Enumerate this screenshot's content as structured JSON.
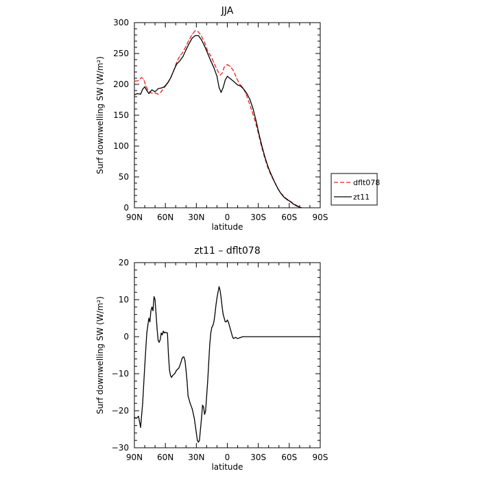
{
  "chart_data": [
    {
      "type": "line",
      "title": "JJA",
      "xlabel": "latitude",
      "ylabel": "Surf downwelling SW (W/m²)",
      "xlim": [
        90,
        -90
      ],
      "ylim": [
        0,
        300
      ],
      "xticks": [
        90,
        60,
        30,
        0,
        -30,
        -60,
        -90
      ],
      "xtick_labels": [
        "90N",
        "60N",
        "30N",
        "0",
        "30S",
        "60S",
        "90S"
      ],
      "yticks": [
        0,
        50,
        100,
        150,
        200,
        250,
        300
      ],
      "ytick_labels": [
        "0",
        "50",
        "100",
        "150",
        "200",
        "250",
        "300"
      ],
      "legend": {
        "placement": "right",
        "entries": [
          "dflt078",
          "zt11"
        ]
      },
      "series": [
        {
          "name": "dflt078",
          "color": "#e0201c",
          "dash": "dashed",
          "points": [
            [
              90,
              205
            ],
            [
              86,
              206
            ],
            [
              83,
              211
            ],
            [
              81,
              208
            ],
            [
              79,
              198
            ],
            [
              77,
              191
            ],
            [
              74,
              186
            ],
            [
              70,
              186
            ],
            [
              67,
              184
            ],
            [
              64,
              188
            ],
            [
              61,
              195
            ],
            [
              58,
              201
            ],
            [
              55,
              210
            ],
            [
              52,
              222
            ],
            [
              49,
              236
            ],
            [
              46,
              246
            ],
            [
              43,
              252
            ],
            [
              40,
              262
            ],
            [
              37,
              272
            ],
            [
              34,
              281
            ],
            [
              31,
              287
            ],
            [
              28,
              285
            ],
            [
              25,
              278
            ],
            [
              22,
              268
            ],
            [
              19,
              254
            ],
            [
              16,
              246
            ],
            [
              13,
              235
            ],
            [
              10,
              224
            ],
            [
              7,
              215
            ],
            [
              5,
              218
            ],
            [
              3,
              228
            ],
            [
              0,
              232
            ],
            [
              -3,
              229
            ],
            [
              -6,
              222
            ],
            [
              -9,
              210
            ],
            [
              -12,
              200
            ],
            [
              -15,
              195
            ],
            [
              -18,
              185
            ],
            [
              -21,
              171
            ],
            [
              -24,
              156
            ],
            [
              -27,
              140
            ],
            [
              -30,
              121
            ],
            [
              -33,
              100
            ],
            [
              -36,
              82
            ],
            [
              -39,
              66
            ],
            [
              -42,
              54
            ],
            [
              -45,
              44
            ],
            [
              -48,
              34
            ],
            [
              -51,
              25
            ],
            [
              -54,
              20
            ],
            [
              -57,
              15
            ],
            [
              -60,
              12
            ],
            [
              -63,
              8
            ],
            [
              -66,
              5
            ],
            [
              -69,
              2
            ],
            [
              -72,
              0
            ]
          ]
        },
        {
          "name": "zt11",
          "color": "#000000",
          "dash": "solid",
          "points": [
            [
              90,
              183
            ],
            [
              87,
              185
            ],
            [
              84,
              184
            ],
            [
              82,
              192
            ],
            [
              80,
              196
            ],
            [
              78,
              190
            ],
            [
              76,
              185
            ],
            [
              73,
              191
            ],
            [
              70,
              188
            ],
            [
              67,
              193
            ],
            [
              64,
              194
            ],
            [
              61,
              196
            ],
            [
              58,
              202
            ],
            [
              55,
              210
            ],
            [
              52,
              222
            ],
            [
              49,
              233
            ],
            [
              46,
              238
            ],
            [
              43,
              245
            ],
            [
              40,
              256
            ],
            [
              37,
              266
            ],
            [
              34,
              275
            ],
            [
              31,
              279
            ],
            [
              28,
              279
            ],
            [
              25,
              272
            ],
            [
              22,
              262
            ],
            [
              19,
              250
            ],
            [
              16,
              238
            ],
            [
              13,
              227
            ],
            [
              10,
              213
            ],
            [
              8,
              195
            ],
            [
              6,
              187
            ],
            [
              4,
              195
            ],
            [
              2,
              207
            ],
            [
              0,
              213
            ],
            [
              -3,
              209
            ],
            [
              -6,
              205
            ],
            [
              -10,
              199
            ],
            [
              -13,
              197
            ],
            [
              -16,
              192
            ],
            [
              -19,
              185
            ],
            [
              -22,
              175
            ],
            [
              -25,
              160
            ],
            [
              -28,
              140
            ],
            [
              -31,
              117
            ],
            [
              -34,
              97
            ],
            [
              -37,
              79
            ],
            [
              -40,
              64
            ],
            [
              -43,
              52
            ],
            [
              -46,
              41
            ],
            [
              -49,
              31
            ],
            [
              -52,
              23
            ],
            [
              -55,
              17
            ],
            [
              -58,
              13
            ],
            [
              -61,
              10
            ],
            [
              -64,
              6
            ],
            [
              -67,
              3
            ],
            [
              -70,
              1
            ],
            [
              -72,
              0
            ]
          ]
        }
      ]
    },
    {
      "type": "line",
      "title": "zt11 – dflt078",
      "xlabel": "latitude",
      "ylabel": "Surf downwelling SW (W/m²)",
      "xlim": [
        90,
        -90
      ],
      "ylim": [
        -30,
        20
      ],
      "xticks": [
        90,
        60,
        30,
        0,
        -30,
        -60,
        -90
      ],
      "xtick_labels": [
        "90N",
        "60N",
        "30N",
        "0",
        "30S",
        "60S",
        "90S"
      ],
      "yticks": [
        -30,
        -20,
        -10,
        0,
        10,
        20
      ],
      "ytick_labels": [
        "−30",
        "−20",
        "−10",
        "0",
        "10",
        "20"
      ],
      "series": [
        {
          "color": "#000000",
          "dash": "solid",
          "points": [
            [
              90,
              -21.8
            ],
            [
              88,
              -22
            ],
            [
              86,
              -21.5
            ],
            [
              84,
              -24.5
            ],
            [
              82,
              -18
            ],
            [
              80,
              -8
            ],
            [
              78,
              1
            ],
            [
              76,
              5
            ],
            [
              75,
              4
            ],
            [
              74,
              7
            ],
            [
              73,
              8
            ],
            [
              72,
              7
            ],
            [
              71,
              10.8
            ],
            [
              70,
              10
            ],
            [
              69,
              6
            ],
            [
              68,
              2
            ],
            [
              67,
              -1
            ],
            [
              66,
              -1.5
            ],
            [
              65,
              -0.8
            ],
            [
              64,
              1
            ],
            [
              63,
              0.5
            ],
            [
              62,
              1.5
            ],
            [
              61,
              1
            ],
            [
              60,
              1.2
            ],
            [
              58,
              1
            ],
            [
              57,
              -5
            ],
            [
              56,
              -9
            ],
            [
              55,
              -10.5
            ],
            [
              54,
              -11
            ],
            [
              53,
              -10.5
            ],
            [
              51,
              -10
            ],
            [
              49,
              -9
            ],
            [
              47,
              -8.5
            ],
            [
              45,
              -7
            ],
            [
              44,
              -6
            ],
            [
              43,
              -5.5
            ],
            [
              42,
              -5.5
            ],
            [
              41,
              -6.5
            ],
            [
              40,
              -9
            ],
            [
              39,
              -12
            ],
            [
              38,
              -16
            ],
            [
              36,
              -18
            ],
            [
              34,
              -19.5
            ],
            [
              32,
              -22
            ],
            [
              30,
              -26
            ],
            [
              29,
              -28
            ],
            [
              28,
              -28.5
            ],
            [
              27,
              -28
            ],
            [
              26,
              -25
            ],
            [
              25,
              -22
            ],
            [
              24,
              -18.5
            ],
            [
              23,
              -19
            ],
            [
              22,
              -21
            ],
            [
              21,
              -20
            ],
            [
              20,
              -16
            ],
            [
              19,
              -12
            ],
            [
              18,
              -7
            ],
            [
              17,
              -2
            ],
            [
              16,
              1
            ],
            [
              15,
              2.5
            ],
            [
              14,
              3
            ],
            [
              13,
              4
            ],
            [
              12,
              6
            ],
            [
              11,
              8.5
            ],
            [
              10,
              10.5
            ],
            [
              9,
              12
            ],
            [
              8,
              13.5
            ],
            [
              7,
              12.5
            ],
            [
              6,
              10.5
            ],
            [
              5,
              8
            ],
            [
              4,
              6
            ],
            [
              3,
              5
            ],
            [
              2,
              4
            ],
            [
              1,
              4
            ],
            [
              0,
              4.5
            ],
            [
              -1,
              4
            ],
            [
              -2,
              3
            ],
            [
              -3,
              2
            ],
            [
              -4,
              1
            ],
            [
              -5,
              0
            ],
            [
              -6,
              -0.5
            ],
            [
              -8,
              -0.2
            ],
            [
              -10,
              -0.5
            ],
            [
              -12,
              -0.3
            ],
            [
              -15,
              0
            ],
            [
              -90,
              0
            ]
          ]
        }
      ]
    }
  ]
}
